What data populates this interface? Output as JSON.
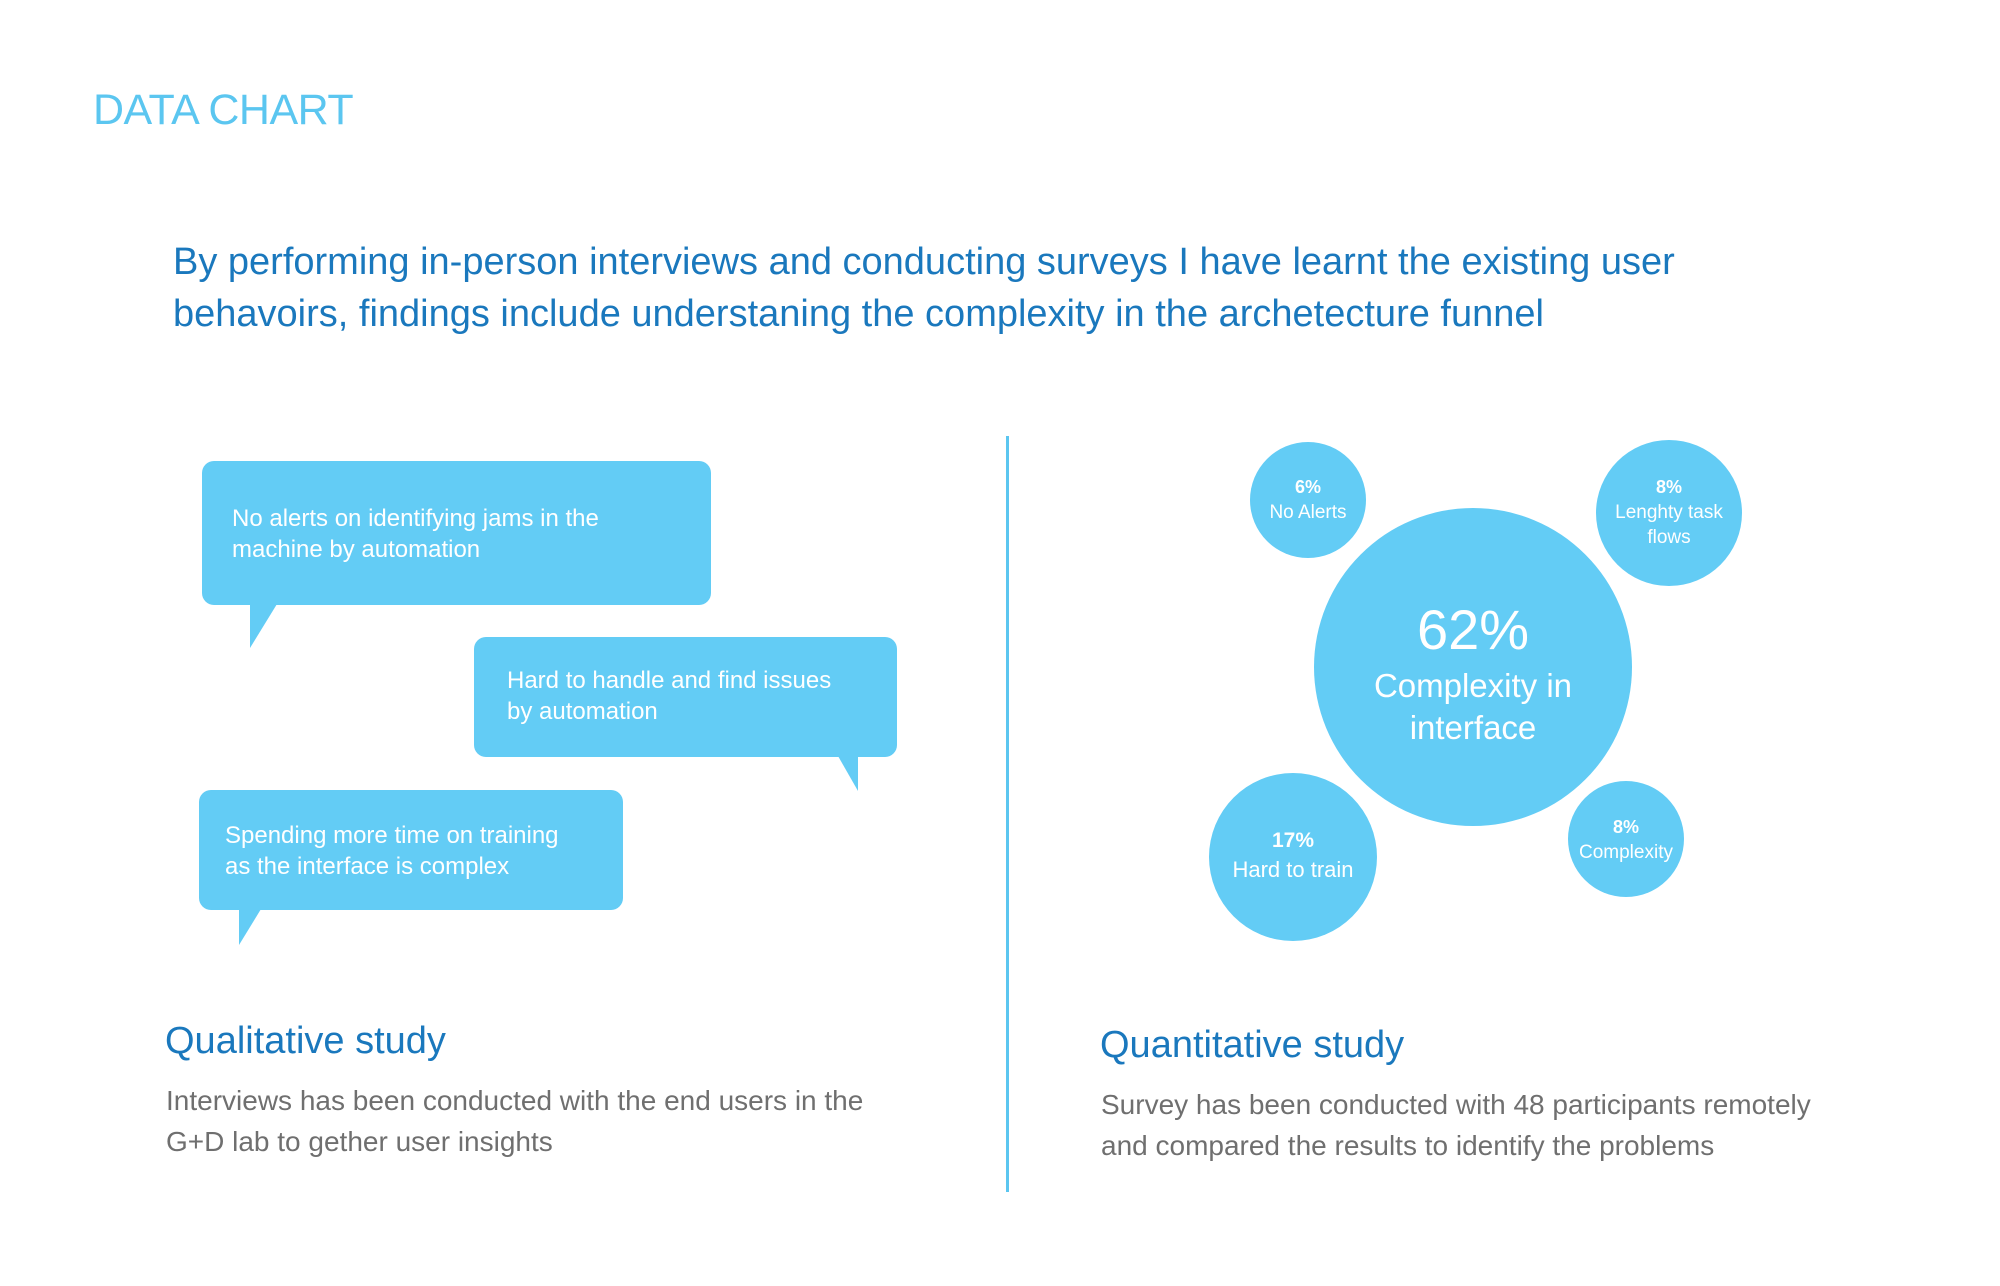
{
  "header": {
    "section_label": "DATA CHART",
    "intro_lines": [
      "By performing in-person interviews and conducting surveys I have learnt the existing user",
      "behavoirs, findings include understaning the complexity in the archetecture funnel"
    ]
  },
  "qualitative": {
    "quotes": [
      {
        "lines": [
          "No alerts on identifying jams in the",
          "machine by automation"
        ]
      },
      {
        "lines": [
          "Hard to handle and find issues",
          "by automation"
        ]
      },
      {
        "lines": [
          "Spending more time on training",
          "as the interface is complex"
        ]
      }
    ],
    "title": "Qualitative study",
    "description_lines": [
      "Interviews has been conducted with the end users in the",
      "G+D lab to gether user insights"
    ]
  },
  "quantitative": {
    "title": "Quantitative study",
    "description_lines": [
      "Survey has been conducted with 48 participants remotely",
      "and compared the results to identify the problems"
    ]
  },
  "colors": {
    "accent_light": "#63ccf5",
    "accent_dark": "#1a78bd",
    "text_gray": "#6f6f6f"
  },
  "chart_data": {
    "type": "bubble",
    "title": "",
    "items": [
      {
        "value_label": "62%",
        "value": 62,
        "label_lines": [
          "Complexity in",
          "interface"
        ]
      },
      {
        "value_label": "6%",
        "value": 6,
        "label_lines": [
          "No Alerts"
        ]
      },
      {
        "value_label": "8%",
        "value": 8,
        "label_lines": [
          "Lenghty task",
          "flows"
        ]
      },
      {
        "value_label": "17%",
        "value": 17,
        "label_lines": [
          "Hard to train"
        ]
      },
      {
        "value_label": "8%",
        "value": 8,
        "label_lines": [
          "Complexity"
        ]
      }
    ]
  }
}
